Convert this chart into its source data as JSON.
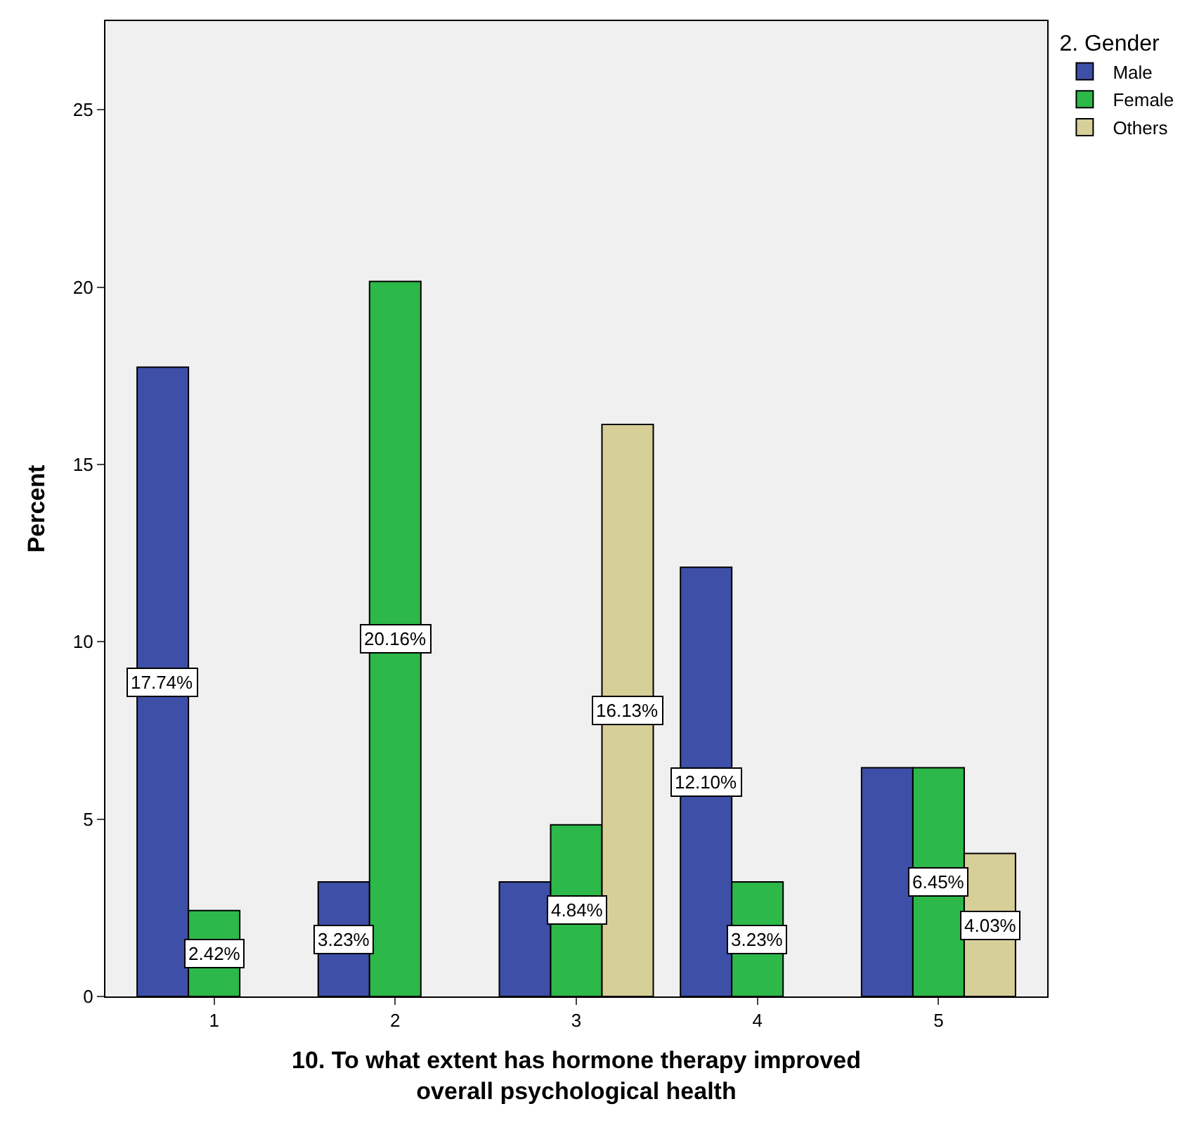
{
  "chart_data": {
    "type": "bar",
    "xlabel": "10. To what extent has hormone therapy improved overall psychological health",
    "ylabel": "Percent",
    "legend_title": "2. Gender",
    "categories": [
      "1",
      "2",
      "3",
      "4",
      "5"
    ],
    "series": [
      {
        "name": "Male",
        "color": "#3e4fa8",
        "values": [
          17.74,
          3.23,
          3.23,
          12.1,
          6.45
        ],
        "value_labels": [
          "17.74%",
          "3.23%",
          null,
          "12.10%",
          null
        ]
      },
      {
        "name": "Female",
        "color": "#2db84a",
        "values": [
          2.42,
          20.16,
          4.84,
          3.23,
          6.45
        ],
        "value_labels": [
          "2.42%",
          "20.16%",
          "4.84%",
          "3.23%",
          "6.45%"
        ]
      },
      {
        "name": "Others",
        "color": "#d6cf98",
        "values": [
          null,
          null,
          16.13,
          null,
          4.03
        ],
        "value_labels": [
          null,
          null,
          "16.13%",
          null,
          "4.03%"
        ]
      }
    ],
    "ylim": [
      0,
      27.5
    ],
    "yticks": [
      0,
      5,
      10,
      15,
      20,
      25
    ],
    "grid": false,
    "legend": "top right"
  }
}
